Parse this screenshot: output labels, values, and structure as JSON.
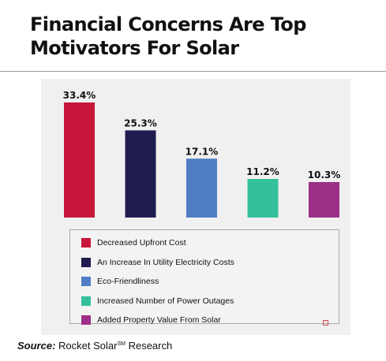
{
  "title_line1": "Financial Concerns Are Top",
  "title_line2": "Motivators For Solar",
  "source": {
    "label": "Source:",
    "text_before": "Rocket Solar",
    "superscript": "SM",
    "text_after": "Research"
  },
  "chart_data": {
    "type": "bar",
    "unit": "%",
    "ylim": [
      0,
      33.4
    ],
    "grid": false,
    "legend_placement": "bottom",
    "categories": [
      "Decreased Upfront Cost",
      "An Increase In Utility Electricity Costs",
      "Eco-Friendliness",
      "Increased Number of Power Outages",
      "Added Property Value From Solar"
    ],
    "values": [
      33.4,
      25.3,
      17.1,
      11.2,
      10.3
    ],
    "data_labels": [
      "33.4%",
      "25.3%",
      "17.1%",
      "11.2%",
      "10.3%"
    ],
    "colors": [
      "#c8173a",
      "#1f1d4f",
      "#4f7ec5",
      "#35c09c",
      "#9d2f86"
    ]
  },
  "colors": {
    "panel_background": "#f0f0f0",
    "legend_border": "#a8a8a8"
  },
  "icons": {
    "corner": "small-square-icon"
  }
}
